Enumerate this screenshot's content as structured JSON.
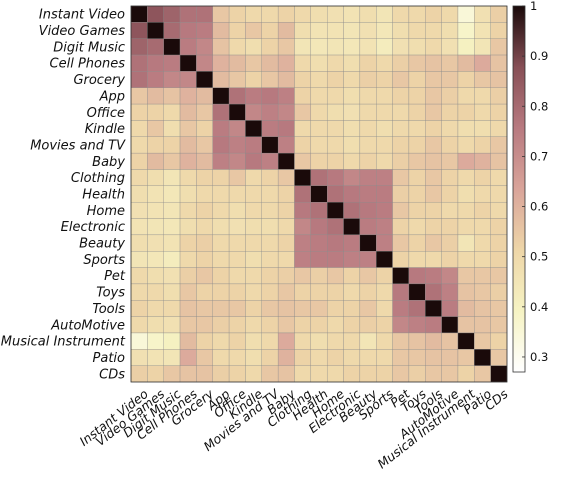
{
  "chart_data": {
    "type": "heatmap",
    "title": "",
    "xlabel": "",
    "ylabel": "",
    "categories": [
      "Instant Video",
      "Video Games",
      "Digit Music",
      "Cell Phones",
      "Grocery",
      "App",
      "Office",
      "Kindle",
      "Movies and TV",
      "Baby",
      "Clothing",
      "Health",
      "Home",
      "Electronic",
      "Beauty",
      "Sports",
      "Pet",
      "Toys",
      "Tools",
      "AutoMotive",
      "Musical Instrument",
      "Patio",
      "CDs"
    ],
    "blocks": [
      [
        0,
        4
      ],
      [
        5,
        9
      ],
      [
        10,
        15
      ],
      [
        16,
        19
      ]
    ],
    "values": [
      [
        1.0,
        0.86,
        0.82,
        0.78,
        0.78,
        0.55,
        0.52,
        0.5,
        0.5,
        0.52,
        0.5,
        0.48,
        0.47,
        0.46,
        0.48,
        0.45,
        0.5,
        0.5,
        0.52,
        0.5,
        0.35,
        0.47,
        0.53
      ],
      [
        0.86,
        1.0,
        0.8,
        0.76,
        0.75,
        0.58,
        0.52,
        0.55,
        0.52,
        0.58,
        0.48,
        0.46,
        0.46,
        0.45,
        0.47,
        0.44,
        0.48,
        0.5,
        0.5,
        0.48,
        0.38,
        0.46,
        0.52
      ],
      [
        0.82,
        0.8,
        1.0,
        0.75,
        0.72,
        0.56,
        0.5,
        0.48,
        0.52,
        0.55,
        0.45,
        0.44,
        0.45,
        0.44,
        0.46,
        0.42,
        0.47,
        0.48,
        0.5,
        0.47,
        0.4,
        0.45,
        0.55
      ],
      [
        0.78,
        0.76,
        0.75,
        1.0,
        0.72,
        0.6,
        0.58,
        0.55,
        0.58,
        0.6,
        0.5,
        0.48,
        0.5,
        0.48,
        0.52,
        0.5,
        0.53,
        0.55,
        0.56,
        0.55,
        0.58,
        0.62,
        0.56
      ],
      [
        0.78,
        0.75,
        0.72,
        0.72,
        1.0,
        0.58,
        0.55,
        0.52,
        0.55,
        0.58,
        0.52,
        0.5,
        0.52,
        0.5,
        0.53,
        0.52,
        0.55,
        0.52,
        0.55,
        0.55,
        0.52,
        0.55,
        0.56
      ],
      [
        0.55,
        0.58,
        0.56,
        0.6,
        0.58,
        1.0,
        0.78,
        0.75,
        0.76,
        0.74,
        0.52,
        0.5,
        0.5,
        0.48,
        0.5,
        0.5,
        0.52,
        0.52,
        0.55,
        0.53,
        0.5,
        0.5,
        0.53
      ],
      [
        0.52,
        0.52,
        0.5,
        0.58,
        0.55,
        0.78,
        1.0,
        0.72,
        0.74,
        0.72,
        0.55,
        0.5,
        0.48,
        0.47,
        0.5,
        0.5,
        0.5,
        0.52,
        0.55,
        0.52,
        0.52,
        0.5,
        0.52
      ],
      [
        0.5,
        0.55,
        0.48,
        0.55,
        0.52,
        0.75,
        0.72,
        1.0,
        0.75,
        0.76,
        0.5,
        0.5,
        0.5,
        0.48,
        0.5,
        0.48,
        0.5,
        0.5,
        0.52,
        0.5,
        0.48,
        0.48,
        0.5
      ],
      [
        0.5,
        0.52,
        0.52,
        0.58,
        0.55,
        0.76,
        0.74,
        0.75,
        1.0,
        0.74,
        0.52,
        0.5,
        0.5,
        0.48,
        0.5,
        0.5,
        0.52,
        0.52,
        0.55,
        0.52,
        0.5,
        0.52,
        0.55
      ],
      [
        0.52,
        0.58,
        0.55,
        0.6,
        0.58,
        0.74,
        0.72,
        0.76,
        0.74,
        1.0,
        0.55,
        0.52,
        0.52,
        0.5,
        0.52,
        0.5,
        0.53,
        0.55,
        0.56,
        0.55,
        0.62,
        0.6,
        0.56
      ],
      [
        0.5,
        0.48,
        0.45,
        0.5,
        0.52,
        0.52,
        0.55,
        0.5,
        0.52,
        0.55,
        1.0,
        0.78,
        0.76,
        0.72,
        0.74,
        0.74,
        0.55,
        0.52,
        0.55,
        0.52,
        0.5,
        0.52,
        0.5
      ],
      [
        0.48,
        0.46,
        0.44,
        0.48,
        0.5,
        0.5,
        0.5,
        0.5,
        0.5,
        0.52,
        0.78,
        1.0,
        0.78,
        0.76,
        0.75,
        0.75,
        0.53,
        0.52,
        0.55,
        0.52,
        0.48,
        0.5,
        0.5
      ],
      [
        0.47,
        0.46,
        0.45,
        0.5,
        0.52,
        0.5,
        0.48,
        0.5,
        0.5,
        0.52,
        0.76,
        0.78,
        1.0,
        0.78,
        0.76,
        0.75,
        0.55,
        0.52,
        0.52,
        0.5,
        0.5,
        0.52,
        0.5
      ],
      [
        0.46,
        0.45,
        0.44,
        0.48,
        0.5,
        0.48,
        0.47,
        0.48,
        0.48,
        0.5,
        0.72,
        0.76,
        0.78,
        1.0,
        0.75,
        0.74,
        0.52,
        0.5,
        0.52,
        0.52,
        0.5,
        0.5,
        0.52
      ],
      [
        0.48,
        0.47,
        0.46,
        0.52,
        0.53,
        0.5,
        0.5,
        0.5,
        0.5,
        0.52,
        0.74,
        0.75,
        0.76,
        0.75,
        1.0,
        0.74,
        0.55,
        0.52,
        0.55,
        0.53,
        0.45,
        0.5,
        0.52
      ],
      [
        0.45,
        0.44,
        0.42,
        0.5,
        0.52,
        0.5,
        0.5,
        0.48,
        0.5,
        0.5,
        0.74,
        0.75,
        0.75,
        0.74,
        0.74,
        1.0,
        0.52,
        0.5,
        0.5,
        0.52,
        0.5,
        0.5,
        0.52
      ],
      [
        0.5,
        0.48,
        0.47,
        0.53,
        0.55,
        0.52,
        0.5,
        0.5,
        0.52,
        0.53,
        0.55,
        0.53,
        0.55,
        0.52,
        0.55,
        0.52,
        1.0,
        0.76,
        0.75,
        0.72,
        0.55,
        0.55,
        0.55
      ],
      [
        0.5,
        0.5,
        0.48,
        0.55,
        0.52,
        0.52,
        0.52,
        0.5,
        0.52,
        0.55,
        0.52,
        0.52,
        0.52,
        0.5,
        0.52,
        0.5,
        0.76,
        1.0,
        0.78,
        0.74,
        0.56,
        0.55,
        0.53
      ],
      [
        0.52,
        0.5,
        0.5,
        0.56,
        0.55,
        0.55,
        0.55,
        0.52,
        0.55,
        0.56,
        0.55,
        0.55,
        0.52,
        0.52,
        0.55,
        0.5,
        0.75,
        0.78,
        1.0,
        0.75,
        0.58,
        0.56,
        0.55
      ],
      [
        0.5,
        0.48,
        0.47,
        0.55,
        0.55,
        0.53,
        0.52,
        0.5,
        0.52,
        0.55,
        0.52,
        0.52,
        0.5,
        0.52,
        0.53,
        0.52,
        0.72,
        0.74,
        0.75,
        1.0,
        0.56,
        0.56,
        0.55
      ],
      [
        0.35,
        0.38,
        0.4,
        0.58,
        0.52,
        0.5,
        0.52,
        0.48,
        0.5,
        0.62,
        0.5,
        0.48,
        0.5,
        0.5,
        0.45,
        0.5,
        0.55,
        0.56,
        0.58,
        0.56,
        1.0,
        0.55,
        0.52
      ],
      [
        0.47,
        0.46,
        0.45,
        0.62,
        0.55,
        0.5,
        0.5,
        0.48,
        0.52,
        0.6,
        0.52,
        0.5,
        0.52,
        0.5,
        0.5,
        0.5,
        0.55,
        0.55,
        0.56,
        0.56,
        0.55,
        1.0,
        0.55
      ],
      [
        0.53,
        0.52,
        0.55,
        0.56,
        0.56,
        0.53,
        0.52,
        0.5,
        0.55,
        0.56,
        0.5,
        0.5,
        0.5,
        0.52,
        0.52,
        0.52,
        0.55,
        0.53,
        0.55,
        0.55,
        0.52,
        0.55,
        1.0
      ]
    ],
    "colorbar": {
      "min": 0.27,
      "max": 1.0,
      "ticks": [
        1,
        0.9,
        0.8,
        0.7,
        0.6,
        0.5,
        0.4,
        0.3
      ],
      "colormap": [
        "#ffffff",
        "#f6f3c3",
        "#eed6a8",
        "#d9a49a",
        "#b87a80",
        "#874f56",
        "#1a0a0a"
      ]
    },
    "grid": true,
    "legend": "right"
  }
}
